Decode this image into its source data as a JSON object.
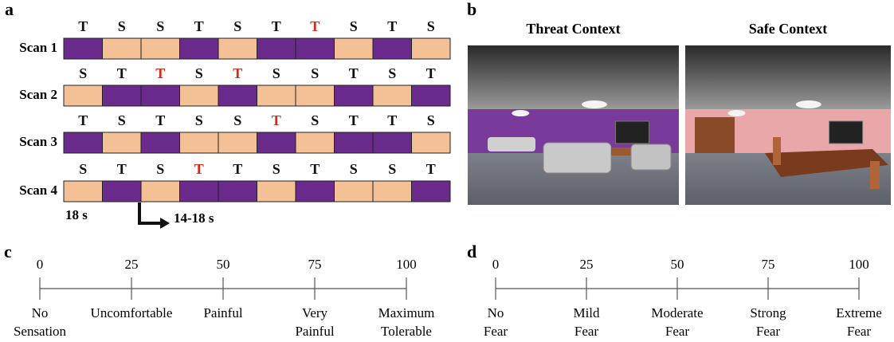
{
  "panel_a": {
    "label": "a",
    "block_colors": {
      "T": "#6a2b8c",
      "S": "#f4c095"
    },
    "scans": [
      {
        "label": "Scan 1",
        "letters": [
          "T",
          "S",
          "S",
          "T",
          "S",
          "T",
          "T",
          "S",
          "T",
          "S"
        ],
        "letter_colors": [
          "#111",
          "#111",
          "#111",
          "#111",
          "#111",
          "#111",
          "#d42a1a",
          "#111",
          "#111",
          "#111"
        ]
      },
      {
        "label": "Scan 2",
        "letters": [
          "S",
          "T",
          "T",
          "S",
          "T",
          "S",
          "S",
          "T",
          "S",
          "T"
        ],
        "letter_colors": [
          "#111",
          "#111",
          "#d42a1a",
          "#111",
          "#d42a1a",
          "#111",
          "#111",
          "#111",
          "#111",
          "#111"
        ]
      },
      {
        "label": "Scan 3",
        "letters": [
          "T",
          "S",
          "T",
          "S",
          "S",
          "T",
          "S",
          "T",
          "T",
          "S"
        ],
        "letter_colors": [
          "#111",
          "#111",
          "#111",
          "#111",
          "#111",
          "#d42a1a",
          "#111",
          "#111",
          "#111",
          "#111"
        ]
      },
      {
        "label": "Scan 4",
        "letters": [
          "S",
          "T",
          "S",
          "T",
          "T",
          "S",
          "T",
          "S",
          "S",
          "T"
        ],
        "letter_colors": [
          "#111",
          "#111",
          "#111",
          "#d42a1a",
          "#111",
          "#111",
          "#111",
          "#111",
          "#111",
          "#111"
        ]
      }
    ],
    "block_duration": "18 s",
    "interval": "14-18 s"
  },
  "panel_b": {
    "label": "b",
    "images": [
      {
        "title": "Threat Context",
        "wall_color": "#7a3a9c"
      },
      {
        "title": "Safe Context",
        "wall_color": "#e9a7a9"
      }
    ]
  },
  "scales": [
    {
      "label": "c",
      "ticks": [
        0,
        25,
        50,
        75,
        100
      ],
      "anchors": [
        [
          "No",
          "Sensation"
        ],
        [
          "Uncomfortable"
        ],
        [
          "Painful"
        ],
        [
          "Very",
          "Painful"
        ],
        [
          "Maximum",
          "Tolerable"
        ]
      ]
    },
    {
      "label": "d",
      "ticks": [
        0,
        25,
        50,
        75,
        100
      ],
      "anchors": [
        [
          "No",
          "Fear"
        ],
        [
          "Mild",
          "Fear"
        ],
        [
          "Moderate",
          "Fear"
        ],
        [
          "Strong",
          "Fear"
        ],
        [
          "Extreme",
          "Fear"
        ]
      ]
    }
  ]
}
